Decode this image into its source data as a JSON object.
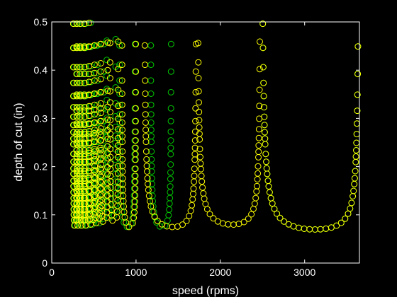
{
  "chart_data": {
    "type": "scatter",
    "title": "",
    "xlabel": "speed (rpms)",
    "ylabel": "depth of cut (in)",
    "xlim": [
      0,
      3650
    ],
    "ylim": [
      0,
      0.5
    ],
    "xticks": [
      0,
      1000,
      2000,
      3000
    ],
    "yticks": [
      0,
      0.1,
      0.2,
      0.3,
      0.4,
      0.5
    ],
    "xtick_labels": [
      "0",
      "1000",
      "2000",
      "3000"
    ],
    "ytick_labels": [
      "0",
      "0.1",
      "0.2",
      "0.3",
      "0.4",
      "0.5"
    ],
    "grid": false,
    "background": "#000000",
    "axis_color": "#ffffff",
    "marker": "open-circle",
    "series": [
      {
        "color": "#00c800",
        "lobes": [
          {
            "left": 265,
            "right": 305,
            "min": 0.04,
            "step": 0.008
          },
          {
            "left": 305,
            "right": 350,
            "min": 0.04,
            "step": 0.008
          },
          {
            "left": 350,
            "right": 400,
            "min": 0.04,
            "step": 0.008
          },
          {
            "left": 400,
            "right": 460,
            "min": 0.04,
            "step": 0.009
          },
          {
            "left": 460,
            "right": 530,
            "min": 0.042,
            "step": 0.01
          },
          {
            "left": 540,
            "right": 620,
            "min": 0.045,
            "step": 0.01
          },
          {
            "left": 650,
            "right": 760,
            "min": 0.055,
            "step": 0.012
          },
          {
            "left": 800,
            "right": 990,
            "min": 0.045,
            "step": 0.012
          },
          {
            "left": 1170,
            "right": 1420,
            "min": 0.045,
            "step": 0.013
          },
          {
            "left": 2480,
            "right": 3650,
            "min": 0.04,
            "step": 0.011
          }
        ]
      },
      {
        "color": "#ffff00",
        "lobes": [
          {
            "left": 255,
            "right": 295,
            "min": 0.04,
            "step": 0.008
          },
          {
            "left": 295,
            "right": 335,
            "min": 0.04,
            "step": 0.008
          },
          {
            "left": 335,
            "right": 385,
            "min": 0.04,
            "step": 0.008
          },
          {
            "left": 385,
            "right": 440,
            "min": 0.04,
            "step": 0.009
          },
          {
            "left": 440,
            "right": 505,
            "min": 0.042,
            "step": 0.01
          },
          {
            "left": 505,
            "right": 580,
            "min": 0.045,
            "step": 0.01
          },
          {
            "left": 580,
            "right": 665,
            "min": 0.048,
            "step": 0.011
          },
          {
            "left": 690,
            "right": 790,
            "min": 0.05,
            "step": 0.012
          },
          {
            "left": 830,
            "right": 1000,
            "min": 0.045,
            "step": 0.012
          },
          {
            "left": 1090,
            "right": 1720,
            "min": 0.045,
            "step": 0.013
          },
          {
            "left": 1720,
            "right": 2480,
            "min": 0.05,
            "step": 0.014
          },
          {
            "left": 2480,
            "right": 3650,
            "min": 0.04,
            "step": 0.011
          }
        ]
      }
    ]
  }
}
